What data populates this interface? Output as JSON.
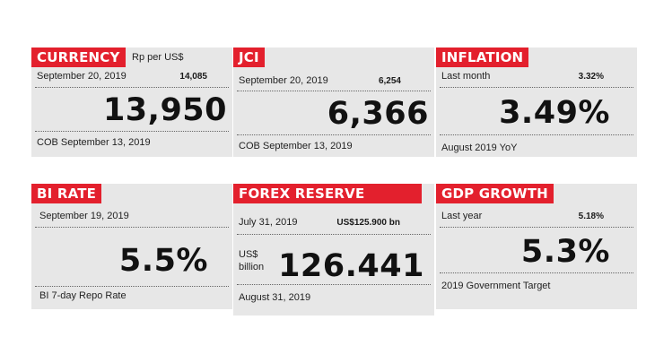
{
  "cards": {
    "currency": {
      "label": "CURRENCY",
      "unit": "Rp per US$",
      "prev_date": "September 20, 2019",
      "prev_value": "14,085",
      "value": "13,950",
      "note": "COB September 13, 2019"
    },
    "jci": {
      "label": "JCI",
      "prev_date": "September 20, 2019",
      "prev_value": "6,254",
      "value": "6,366",
      "note": "COB September 13, 2019"
    },
    "inflation": {
      "label": "INFLATION",
      "prev_date": "Last month",
      "prev_value": "3.32%",
      "value": "3.49%",
      "note": "August 2019 YoY"
    },
    "bi_rate": {
      "label": "BI RATE",
      "prev_date": "September 19, 2019",
      "value": "5.5%",
      "note": "BI 7-day Repo Rate"
    },
    "forex": {
      "label": "FOREX RESERVE",
      "prev_date": "July 31, 2019",
      "prev_value": "US$125.900 bn",
      "unit_line1": "US$",
      "unit_line2": "billion",
      "value": "126.441",
      "note": "August 31, 2019"
    },
    "gdp": {
      "label": "GDP GROWTH",
      "prev_date": "Last year",
      "prev_value": "5.18%",
      "value": "5.3%",
      "note": "2019 Government Target"
    }
  },
  "colors": {
    "accent": "#e3202d",
    "card_bg": "#e7e7e7"
  }
}
